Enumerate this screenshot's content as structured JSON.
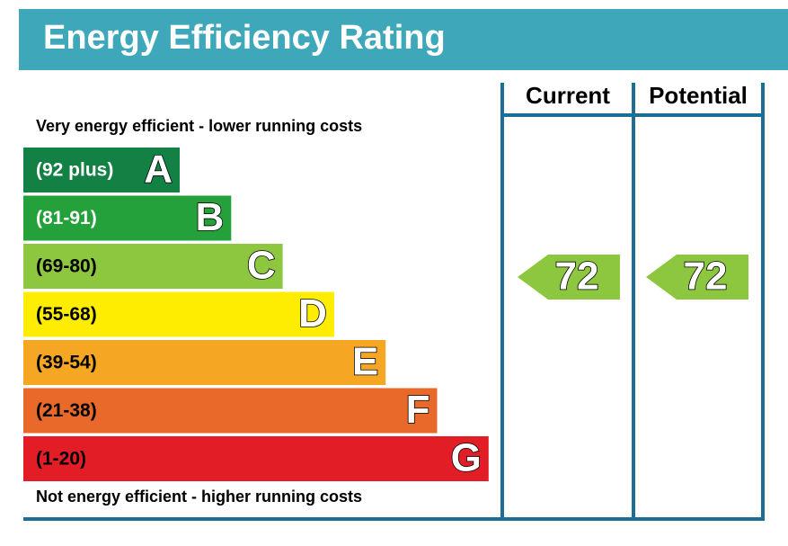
{
  "title": "Energy Efficiency Rating",
  "top_label": "Very energy efficient - lower running costs",
  "bottom_label": "Not energy efficient - higher running costs",
  "columns": [
    "Current",
    "Potential"
  ],
  "bands": [
    {
      "range": "(92 plus)",
      "letter": "A",
      "color": "#138044",
      "text_color": "#ffffff"
    },
    {
      "range": "(81-91)",
      "letter": "B",
      "color": "#24a13a",
      "text_color": "#ffffff"
    },
    {
      "range": "(69-80)",
      "letter": "C",
      "color": "#8dc63f",
      "text_color": "#000000"
    },
    {
      "range": "(55-68)",
      "letter": "D",
      "color": "#ffed00",
      "text_color": "#000000"
    },
    {
      "range": "(39-54)",
      "letter": "E",
      "color": "#f5a623",
      "text_color": "#000000"
    },
    {
      "range": "(21-38)",
      "letter": "F",
      "color": "#e8692a",
      "text_color": "#000000"
    },
    {
      "range": "(1-20)",
      "letter": "G",
      "color": "#e31d25",
      "text_color": "#000000"
    }
  ],
  "ratings": [
    {
      "value": 72,
      "color": "#8dc63f"
    },
    {
      "value": 72,
      "color": "#8dc63f"
    }
  ]
}
